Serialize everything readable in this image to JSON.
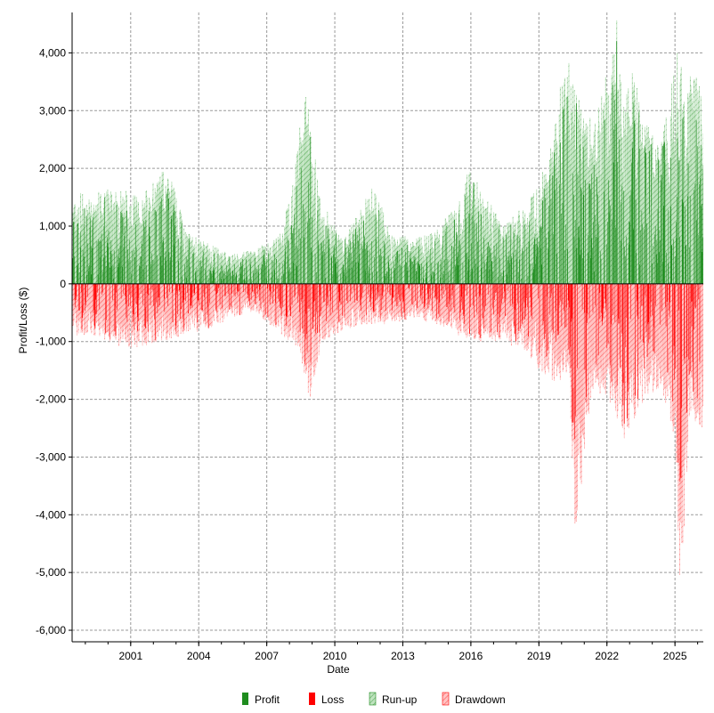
{
  "chart_data": {
    "type": "bar",
    "xlabel": "Date",
    "ylabel": "Profit/Loss ($)",
    "ylim": [
      -6200,
      4700
    ],
    "x_range": [
      "1998-06",
      "2026-04"
    ],
    "x_ticks": [
      "2001",
      "2004",
      "2007",
      "2010",
      "2013",
      "2016",
      "2019",
      "2022",
      "2025"
    ],
    "y_ticks": [
      -6000,
      -5000,
      -4000,
      -3000,
      -2000,
      -1000,
      0,
      1000,
      2000,
      3000,
      4000
    ],
    "y_tick_labels": [
      "-6,000",
      "-5,000",
      "-4,000",
      "-3,000",
      "-2,000",
      "-1,000",
      "0",
      "1,000",
      "2,000",
      "3,000",
      "4,000"
    ],
    "grid": true,
    "legend_position": "bottom",
    "legend": [
      {
        "name": "Profit",
        "color": "#1e8c1e",
        "style": "solid"
      },
      {
        "name": "Loss",
        "color": "#ff0000",
        "style": "solid"
      },
      {
        "name": "Run-up",
        "color": "#1e8c1e",
        "style": "hatched"
      },
      {
        "name": "Drawdown",
        "color": "#ff0000",
        "style": "hatched"
      }
    ],
    "series": [
      {
        "name": "Run-up",
        "x": [
          "1999-06",
          "2000-06",
          "2001-06",
          "2002-09",
          "2003-06",
          "2004-06",
          "2005-06",
          "2006-06",
          "2007-06",
          "2008-03",
          "2008-09",
          "2009-06",
          "2010-06",
          "2011-10",
          "2012-06",
          "2013-06",
          "2014-06",
          "2015-06",
          "2015-11",
          "2016-06",
          "2017-06",
          "2018-06",
          "2019-06",
          "2020-05",
          "2020-10",
          "2021-06",
          "2022-05",
          "2022-06",
          "2022-10",
          "2023-03",
          "2023-09",
          "2024-06",
          "2025-03",
          "2025-06",
          "2025-12"
        ],
        "values": [
          1600,
          1700,
          1500,
          2100,
          900,
          700,
          500,
          600,
          800,
          1800,
          3500,
          1400,
          800,
          1800,
          900,
          800,
          900,
          1500,
          2000,
          1700,
          1000,
          1400,
          2200,
          4400,
          3300,
          2800,
          4300,
          4600,
          3200,
          3800,
          2800,
          2500,
          4300,
          3500,
          3700
        ]
      },
      {
        "name": "Drawdown",
        "x": [
          "1999-06",
          "2000-06",
          "2001-06",
          "2002-06",
          "2003-06",
          "2004-06",
          "2005-06",
          "2006-06",
          "2007-06",
          "2008-06",
          "2008-11",
          "2009-06",
          "2010-06",
          "2011-06",
          "2012-06",
          "2013-06",
          "2014-06",
          "2015-06",
          "2016-06",
          "2017-06",
          "2018-06",
          "2019-06",
          "2020-05",
          "2020-08",
          "2021-06",
          "2022-05",
          "2022-09",
          "2023-06",
          "2024-06",
          "2025-01",
          "2025-04",
          "2025-08",
          "2026-02"
        ],
        "values": [
          -900,
          -1100,
          -1100,
          -1000,
          -900,
          -800,
          -600,
          -500,
          -800,
          -1200,
          -2100,
          -1000,
          -800,
          -700,
          -700,
          -600,
          -700,
          -900,
          -1000,
          -1000,
          -1200,
          -1700,
          -1800,
          -4300,
          -1800,
          -2200,
          -2900,
          -2100,
          -1900,
          -2700,
          -6100,
          -2400,
          -2500
        ]
      }
    ]
  }
}
